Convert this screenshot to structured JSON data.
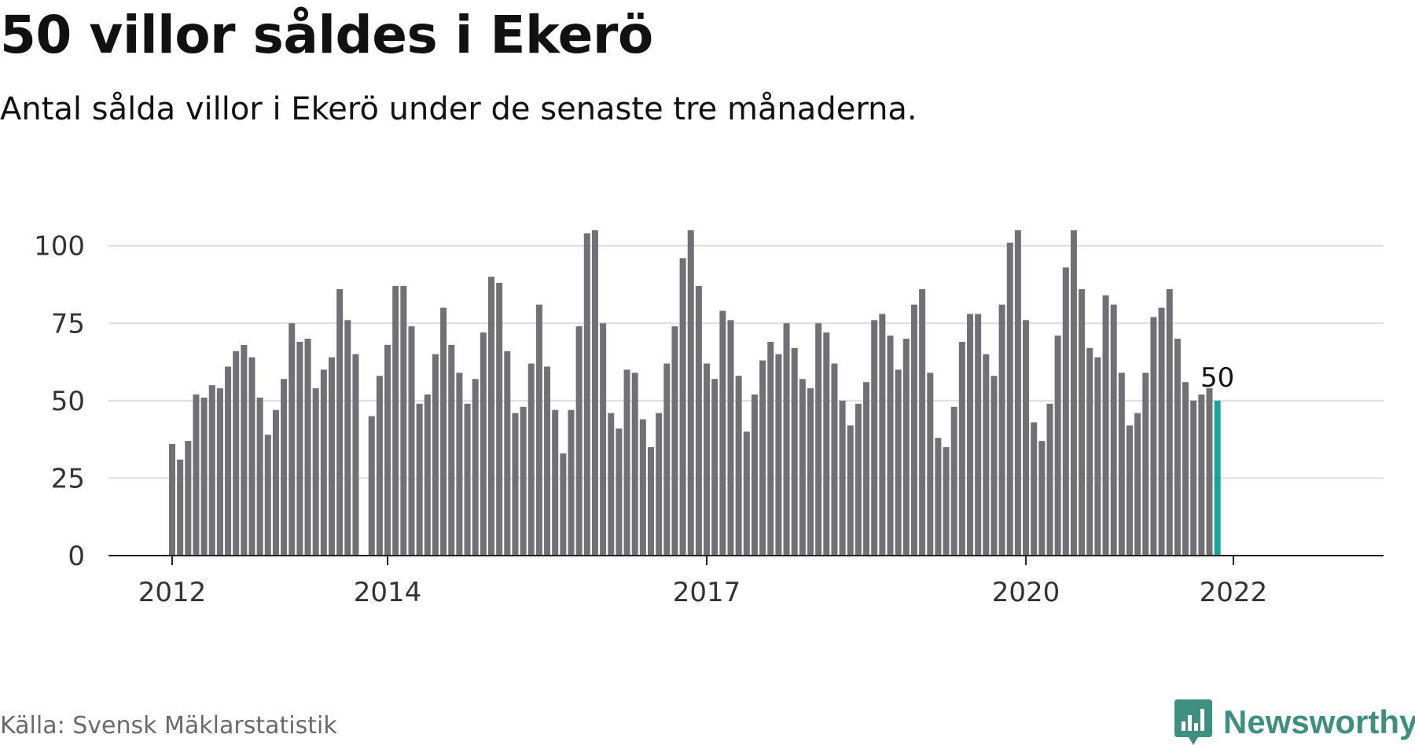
{
  "title": "50 villor såldes i Ekerö",
  "subtitle": "Antal sålda villor i Ekerö under de senaste tre månaderna.",
  "source": "Källa: Svensk Mäklarstatistik",
  "brand": {
    "name": "Newsworthy",
    "icon": "newsworthy-logo-icon",
    "color": "#3e8f80"
  },
  "colors": {
    "bar": "#707075",
    "highlight": "#12a79d",
    "grid": "#dddddd",
    "axis": "#222222"
  },
  "chart_data": {
    "type": "bar",
    "title": "50 villor såldes i Ekerö",
    "xlabel": "",
    "ylabel": "",
    "ylim": [
      0,
      105
    ],
    "yticks": [
      0,
      25,
      50,
      75,
      100
    ],
    "xtick_labels": [
      "2012",
      "2014",
      "2017",
      "2020",
      "2022"
    ],
    "grid": true,
    "highlight_label": "50",
    "series": [
      {
        "values": [
          36,
          31,
          37,
          52,
          51,
          55,
          54,
          61,
          66,
          68,
          64,
          51,
          39,
          47,
          57,
          75,
          69,
          70,
          54,
          60,
          64,
          86,
          76,
          65,
          0,
          45,
          58,
          68,
          87,
          87,
          74,
          49,
          52,
          65,
          80,
          68,
          59,
          49,
          57,
          72,
          90,
          88,
          66,
          46,
          48,
          62,
          81,
          61,
          47,
          33,
          47,
          74,
          104,
          105,
          75,
          46,
          41,
          60,
          59,
          44,
          35,
          46,
          62,
          74,
          96,
          105,
          87,
          62,
          57,
          79,
          76,
          58,
          40,
          52,
          63,
          69,
          65,
          75,
          67,
          57,
          54,
          75,
          72,
          62,
          50,
          42,
          49,
          56,
          76,
          78,
          71,
          60,
          70,
          81,
          86,
          59,
          38,
          35,
          48,
          69,
          78,
          78,
          65,
          58,
          81,
          101,
          105,
          76,
          43,
          37,
          49,
          71,
          93,
          105,
          86,
          67,
          64,
          84,
          81,
          59,
          42,
          46,
          59,
          77,
          80,
          86,
          70,
          56,
          50,
          52,
          54,
          50
        ]
      }
    ]
  }
}
